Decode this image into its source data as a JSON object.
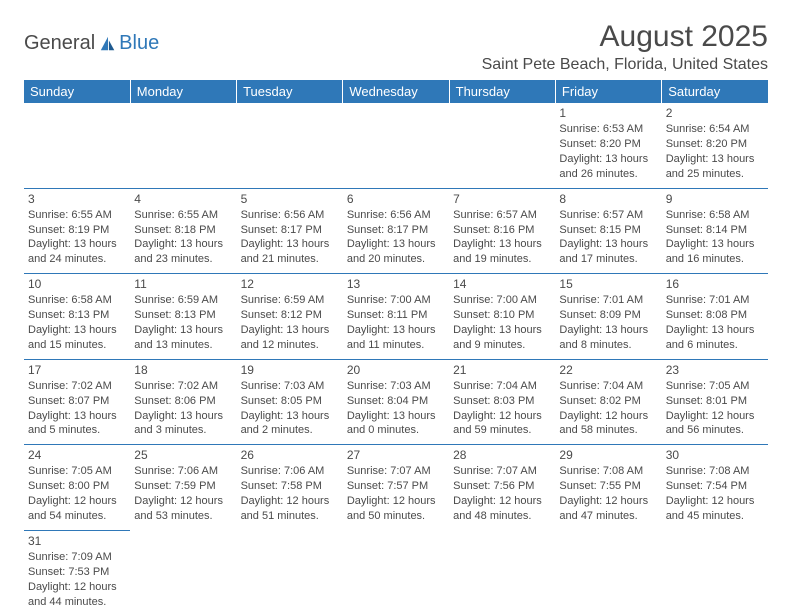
{
  "logo": {
    "general": "General",
    "blue": "Blue"
  },
  "title": "August 2025",
  "location": "Saint Pete Beach, Florida, United States",
  "day_headers": [
    "Sunday",
    "Monday",
    "Tuesday",
    "Wednesday",
    "Thursday",
    "Friday",
    "Saturday"
  ],
  "colors": {
    "header_bg": "#2f78b8",
    "header_text": "#ffffff",
    "body_text": "#4a4a4a",
    "rule": "#2f78b8",
    "bg": "#ffffff"
  },
  "weeks": [
    [
      null,
      null,
      null,
      null,
      null,
      {
        "d": "1",
        "sr": "Sunrise: 6:53 AM",
        "ss": "Sunset: 8:20 PM",
        "dl1": "Daylight: 13 hours",
        "dl2": "and 26 minutes."
      },
      {
        "d": "2",
        "sr": "Sunrise: 6:54 AM",
        "ss": "Sunset: 8:20 PM",
        "dl1": "Daylight: 13 hours",
        "dl2": "and 25 minutes."
      }
    ],
    [
      {
        "d": "3",
        "sr": "Sunrise: 6:55 AM",
        "ss": "Sunset: 8:19 PM",
        "dl1": "Daylight: 13 hours",
        "dl2": "and 24 minutes."
      },
      {
        "d": "4",
        "sr": "Sunrise: 6:55 AM",
        "ss": "Sunset: 8:18 PM",
        "dl1": "Daylight: 13 hours",
        "dl2": "and 23 minutes."
      },
      {
        "d": "5",
        "sr": "Sunrise: 6:56 AM",
        "ss": "Sunset: 8:17 PM",
        "dl1": "Daylight: 13 hours",
        "dl2": "and 21 minutes."
      },
      {
        "d": "6",
        "sr": "Sunrise: 6:56 AM",
        "ss": "Sunset: 8:17 PM",
        "dl1": "Daylight: 13 hours",
        "dl2": "and 20 minutes."
      },
      {
        "d": "7",
        "sr": "Sunrise: 6:57 AM",
        "ss": "Sunset: 8:16 PM",
        "dl1": "Daylight: 13 hours",
        "dl2": "and 19 minutes."
      },
      {
        "d": "8",
        "sr": "Sunrise: 6:57 AM",
        "ss": "Sunset: 8:15 PM",
        "dl1": "Daylight: 13 hours",
        "dl2": "and 17 minutes."
      },
      {
        "d": "9",
        "sr": "Sunrise: 6:58 AM",
        "ss": "Sunset: 8:14 PM",
        "dl1": "Daylight: 13 hours",
        "dl2": "and 16 minutes."
      }
    ],
    [
      {
        "d": "10",
        "sr": "Sunrise: 6:58 AM",
        "ss": "Sunset: 8:13 PM",
        "dl1": "Daylight: 13 hours",
        "dl2": "and 15 minutes."
      },
      {
        "d": "11",
        "sr": "Sunrise: 6:59 AM",
        "ss": "Sunset: 8:13 PM",
        "dl1": "Daylight: 13 hours",
        "dl2": "and 13 minutes."
      },
      {
        "d": "12",
        "sr": "Sunrise: 6:59 AM",
        "ss": "Sunset: 8:12 PM",
        "dl1": "Daylight: 13 hours",
        "dl2": "and 12 minutes."
      },
      {
        "d": "13",
        "sr": "Sunrise: 7:00 AM",
        "ss": "Sunset: 8:11 PM",
        "dl1": "Daylight: 13 hours",
        "dl2": "and 11 minutes."
      },
      {
        "d": "14",
        "sr": "Sunrise: 7:00 AM",
        "ss": "Sunset: 8:10 PM",
        "dl1": "Daylight: 13 hours",
        "dl2": "and 9 minutes."
      },
      {
        "d": "15",
        "sr": "Sunrise: 7:01 AM",
        "ss": "Sunset: 8:09 PM",
        "dl1": "Daylight: 13 hours",
        "dl2": "and 8 minutes."
      },
      {
        "d": "16",
        "sr": "Sunrise: 7:01 AM",
        "ss": "Sunset: 8:08 PM",
        "dl1": "Daylight: 13 hours",
        "dl2": "and 6 minutes."
      }
    ],
    [
      {
        "d": "17",
        "sr": "Sunrise: 7:02 AM",
        "ss": "Sunset: 8:07 PM",
        "dl1": "Daylight: 13 hours",
        "dl2": "and 5 minutes."
      },
      {
        "d": "18",
        "sr": "Sunrise: 7:02 AM",
        "ss": "Sunset: 8:06 PM",
        "dl1": "Daylight: 13 hours",
        "dl2": "and 3 minutes."
      },
      {
        "d": "19",
        "sr": "Sunrise: 7:03 AM",
        "ss": "Sunset: 8:05 PM",
        "dl1": "Daylight: 13 hours",
        "dl2": "and 2 minutes."
      },
      {
        "d": "20",
        "sr": "Sunrise: 7:03 AM",
        "ss": "Sunset: 8:04 PM",
        "dl1": "Daylight: 13 hours",
        "dl2": "and 0 minutes."
      },
      {
        "d": "21",
        "sr": "Sunrise: 7:04 AM",
        "ss": "Sunset: 8:03 PM",
        "dl1": "Daylight: 12 hours",
        "dl2": "and 59 minutes."
      },
      {
        "d": "22",
        "sr": "Sunrise: 7:04 AM",
        "ss": "Sunset: 8:02 PM",
        "dl1": "Daylight: 12 hours",
        "dl2": "and 58 minutes."
      },
      {
        "d": "23",
        "sr": "Sunrise: 7:05 AM",
        "ss": "Sunset: 8:01 PM",
        "dl1": "Daylight: 12 hours",
        "dl2": "and 56 minutes."
      }
    ],
    [
      {
        "d": "24",
        "sr": "Sunrise: 7:05 AM",
        "ss": "Sunset: 8:00 PM",
        "dl1": "Daylight: 12 hours",
        "dl2": "and 54 minutes."
      },
      {
        "d": "25",
        "sr": "Sunrise: 7:06 AM",
        "ss": "Sunset: 7:59 PM",
        "dl1": "Daylight: 12 hours",
        "dl2": "and 53 minutes."
      },
      {
        "d": "26",
        "sr": "Sunrise: 7:06 AM",
        "ss": "Sunset: 7:58 PM",
        "dl1": "Daylight: 12 hours",
        "dl2": "and 51 minutes."
      },
      {
        "d": "27",
        "sr": "Sunrise: 7:07 AM",
        "ss": "Sunset: 7:57 PM",
        "dl1": "Daylight: 12 hours",
        "dl2": "and 50 minutes."
      },
      {
        "d": "28",
        "sr": "Sunrise: 7:07 AM",
        "ss": "Sunset: 7:56 PM",
        "dl1": "Daylight: 12 hours",
        "dl2": "and 48 minutes."
      },
      {
        "d": "29",
        "sr": "Sunrise: 7:08 AM",
        "ss": "Sunset: 7:55 PM",
        "dl1": "Daylight: 12 hours",
        "dl2": "and 47 minutes."
      },
      {
        "d": "30",
        "sr": "Sunrise: 7:08 AM",
        "ss": "Sunset: 7:54 PM",
        "dl1": "Daylight: 12 hours",
        "dl2": "and 45 minutes."
      }
    ],
    [
      {
        "d": "31",
        "sr": "Sunrise: 7:09 AM",
        "ss": "Sunset: 7:53 PM",
        "dl1": "Daylight: 12 hours",
        "dl2": "and 44 minutes."
      },
      null,
      null,
      null,
      null,
      null,
      null
    ]
  ]
}
